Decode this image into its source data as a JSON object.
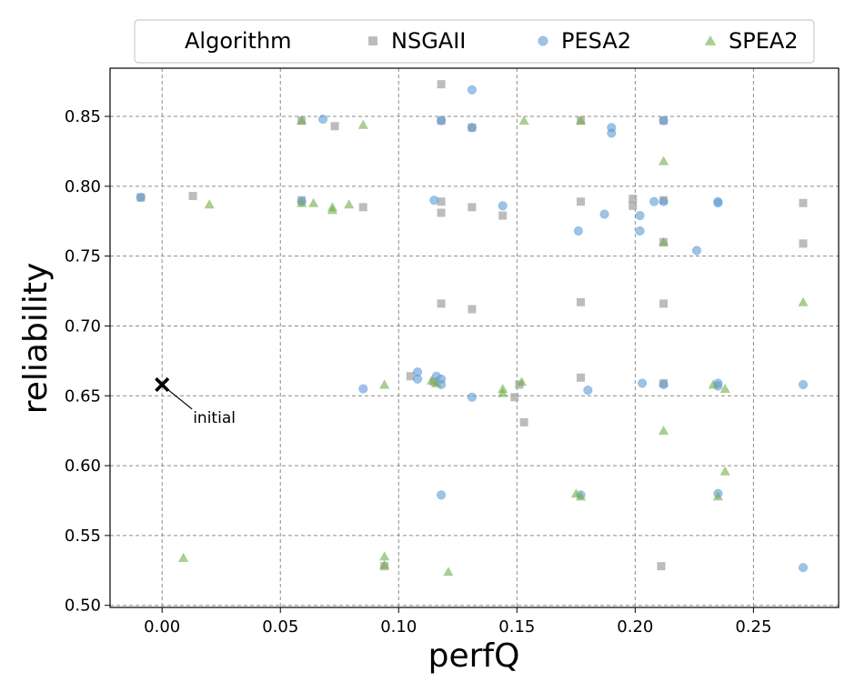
{
  "chart_data": {
    "type": "scatter",
    "xlabel": "perfQ",
    "ylabel": "reliability",
    "xlim": [
      -0.022,
      0.286
    ],
    "ylim": [
      0.4985,
      0.8845
    ],
    "xticks": [
      0.0,
      0.05,
      0.1,
      0.15,
      0.2,
      0.25
    ],
    "xtick_labels": [
      "0.00",
      "0.05",
      "0.10",
      "0.15",
      "0.20",
      "0.25"
    ],
    "yticks": [
      0.5,
      0.55,
      0.6,
      0.65,
      0.7,
      0.75,
      0.8,
      0.85
    ],
    "ytick_labels": [
      "0.50",
      "0.55",
      "0.60",
      "0.65",
      "0.70",
      "0.75",
      "0.80",
      "0.85"
    ],
    "grid": true,
    "legend": {
      "title": "Algorithm",
      "placement": "top, outside plot",
      "entries": [
        "NSGAII",
        "PESA2",
        "SPEA2"
      ]
    },
    "annotation": {
      "text": "initial",
      "x": 0.0,
      "y": 0.658,
      "marker": "x",
      "color": "#000000"
    },
    "series": [
      {
        "name": "NSGAII",
        "marker": "square",
        "color": "#a6a6a6",
        "points": [
          [
            -0.009,
            0.792
          ],
          [
            0.013,
            0.793
          ],
          [
            0.059,
            0.847
          ],
          [
            0.059,
            0.79
          ],
          [
            0.073,
            0.843
          ],
          [
            0.085,
            0.785
          ],
          [
            0.094,
            0.528
          ],
          [
            0.105,
            0.664
          ],
          [
            0.115,
            0.66
          ],
          [
            0.118,
            0.873
          ],
          [
            0.118,
            0.847
          ],
          [
            0.118,
            0.789
          ],
          [
            0.118,
            0.781
          ],
          [
            0.118,
            0.716
          ],
          [
            0.131,
            0.842
          ],
          [
            0.131,
            0.785
          ],
          [
            0.131,
            0.712
          ],
          [
            0.144,
            0.779
          ],
          [
            0.149,
            0.649
          ],
          [
            0.151,
            0.658
          ],
          [
            0.153,
            0.631
          ],
          [
            0.177,
            0.847
          ],
          [
            0.177,
            0.789
          ],
          [
            0.177,
            0.717
          ],
          [
            0.177,
            0.663
          ],
          [
            0.199,
            0.791
          ],
          [
            0.199,
            0.786
          ],
          [
            0.211,
            0.528
          ],
          [
            0.212,
            0.847
          ],
          [
            0.212,
            0.79
          ],
          [
            0.212,
            0.76
          ],
          [
            0.212,
            0.716
          ],
          [
            0.212,
            0.659
          ],
          [
            0.271,
            0.788
          ],
          [
            0.271,
            0.759
          ]
        ]
      },
      {
        "name": "PESA2",
        "marker": "circle",
        "color": "#5b9bd5",
        "points": [
          [
            -0.009,
            0.792
          ],
          [
            0.059,
            0.789
          ],
          [
            0.068,
            0.848
          ],
          [
            0.085,
            0.655
          ],
          [
            0.108,
            0.667
          ],
          [
            0.108,
            0.662
          ],
          [
            0.115,
            0.79
          ],
          [
            0.116,
            0.664
          ],
          [
            0.118,
            0.662
          ],
          [
            0.118,
            0.658
          ],
          [
            0.118,
            0.579
          ],
          [
            0.118,
            0.847
          ],
          [
            0.131,
            0.869
          ],
          [
            0.131,
            0.842
          ],
          [
            0.131,
            0.649
          ],
          [
            0.144,
            0.786
          ],
          [
            0.176,
            0.768
          ],
          [
            0.177,
            0.579
          ],
          [
            0.18,
            0.654
          ],
          [
            0.187,
            0.78
          ],
          [
            0.19,
            0.842
          ],
          [
            0.19,
            0.838
          ],
          [
            0.202,
            0.779
          ],
          [
            0.202,
            0.768
          ],
          [
            0.203,
            0.659
          ],
          [
            0.208,
            0.789
          ],
          [
            0.212,
            0.847
          ],
          [
            0.212,
            0.789
          ],
          [
            0.212,
            0.658
          ],
          [
            0.226,
            0.754
          ],
          [
            0.235,
            0.789
          ],
          [
            0.235,
            0.788
          ],
          [
            0.235,
            0.659
          ],
          [
            0.235,
            0.657
          ],
          [
            0.235,
            0.58
          ],
          [
            0.271,
            0.658
          ],
          [
            0.271,
            0.527
          ]
        ]
      },
      {
        "name": "SPEA2",
        "marker": "triangle",
        "color": "#70ad47",
        "points": [
          [
            0.009,
            0.534
          ],
          [
            0.02,
            0.787
          ],
          [
            0.059,
            0.847
          ],
          [
            0.059,
            0.788
          ],
          [
            0.064,
            0.788
          ],
          [
            0.072,
            0.785
          ],
          [
            0.072,
            0.783
          ],
          [
            0.079,
            0.787
          ],
          [
            0.085,
            0.844
          ],
          [
            0.094,
            0.658
          ],
          [
            0.094,
            0.535
          ],
          [
            0.094,
            0.529
          ],
          [
            0.114,
            0.661
          ],
          [
            0.116,
            0.659
          ],
          [
            0.121,
            0.524
          ],
          [
            0.144,
            0.655
          ],
          [
            0.144,
            0.652
          ],
          [
            0.152,
            0.66
          ],
          [
            0.153,
            0.847
          ],
          [
            0.175,
            0.58
          ],
          [
            0.177,
            0.847
          ],
          [
            0.177,
            0.578
          ],
          [
            0.212,
            0.818
          ],
          [
            0.212,
            0.76
          ],
          [
            0.212,
            0.625
          ],
          [
            0.233,
            0.658
          ],
          [
            0.235,
            0.578
          ],
          [
            0.238,
            0.655
          ],
          [
            0.238,
            0.596
          ],
          [
            0.271,
            0.717
          ]
        ]
      }
    ]
  }
}
